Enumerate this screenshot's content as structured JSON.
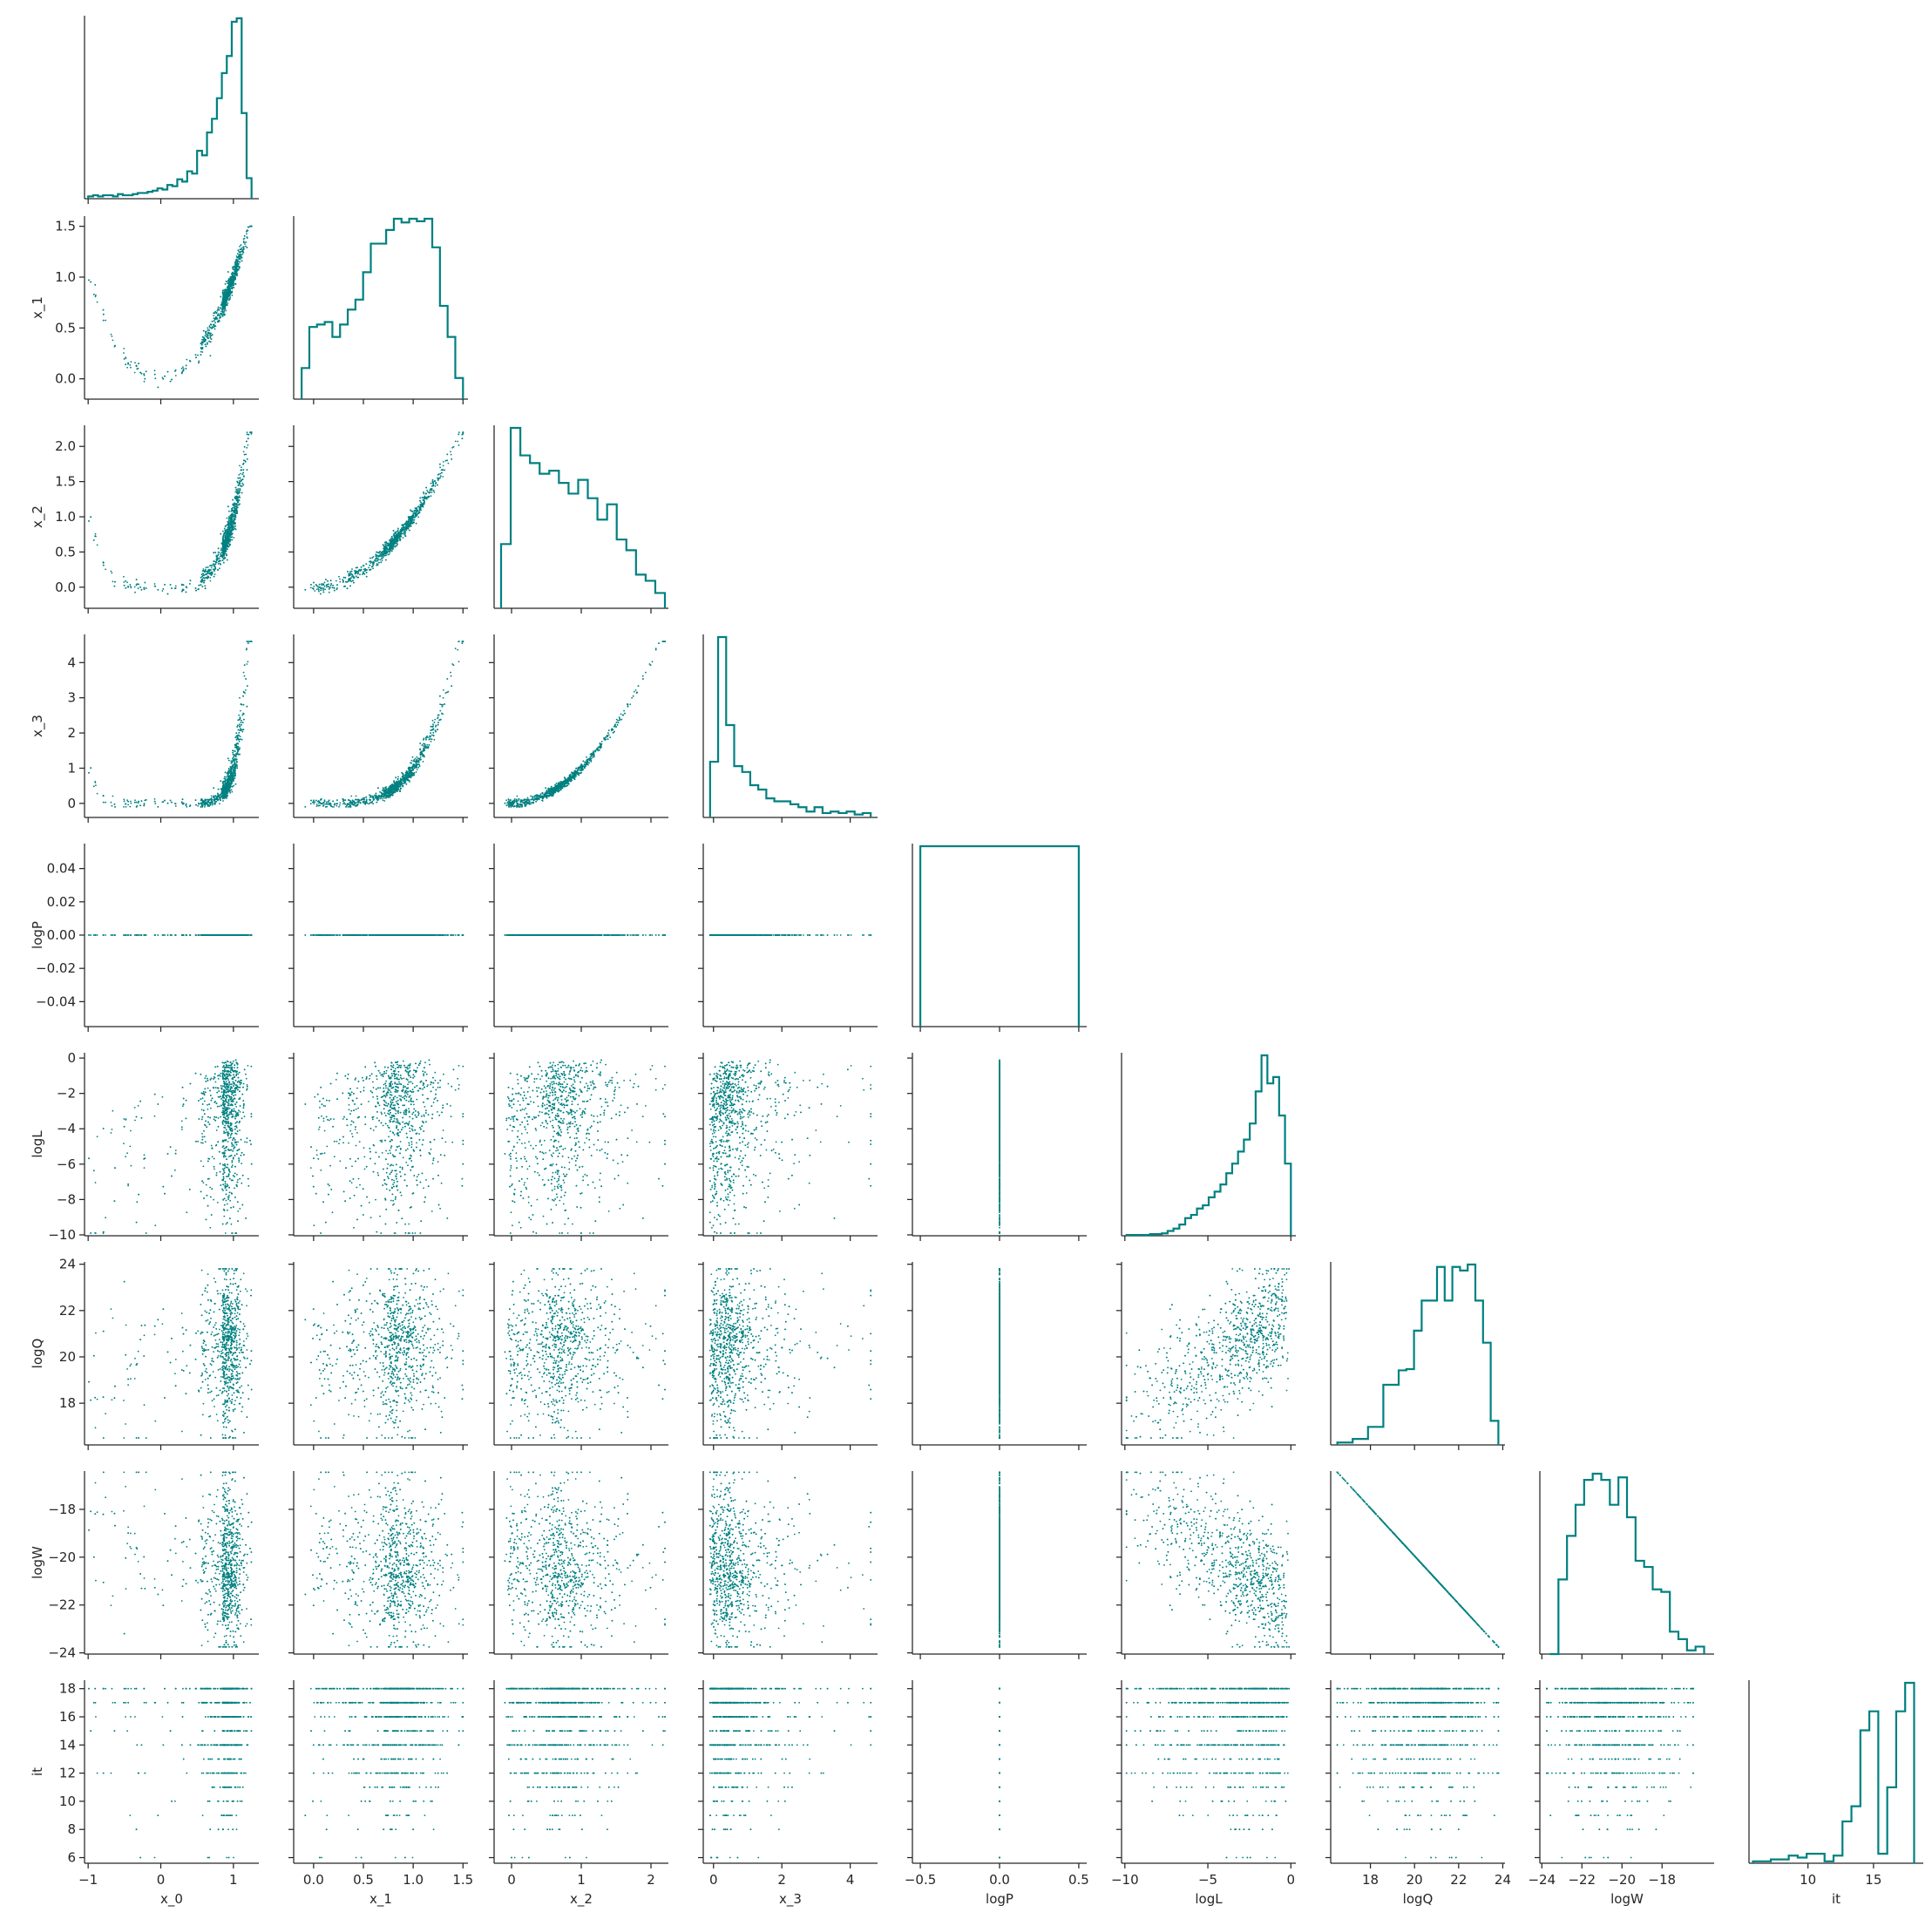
{
  "chart_data": {
    "type": "scatter",
    "kind": "corner pair plot (lower triangle scatter, diagonal step histograms)",
    "color": "#008080",
    "background": "#ffffff",
    "grid": false,
    "variables": [
      "x_0",
      "x_1",
      "x_2",
      "x_3",
      "logP",
      "logL",
      "logQ",
      "logW",
      "it"
    ],
    "x_ranges": {
      "x_0": [
        -1.05,
        1.35
      ],
      "x_1": [
        -0.2,
        1.55
      ],
      "x_2": [
        -0.25,
        2.25
      ],
      "x_3": [
        -0.3,
        4.8
      ],
      "logP": [
        -0.55,
        0.55
      ],
      "logL": [
        -10.2,
        0.3
      ],
      "logQ": [
        16.2,
        24.1
      ],
      "logW": [
        -24.1,
        -15.4
      ],
      "it": [
        5.5,
        18.8
      ]
    },
    "y_ranges": {
      "x_1": [
        -0.2,
        1.6
      ],
      "x_2": [
        -0.3,
        2.3
      ],
      "x_3": [
        -0.4,
        4.8
      ],
      "logP": [
        -0.055,
        0.055
      ],
      "logL": [
        -10.05,
        0.3
      ],
      "logQ": [
        16.2,
        24.1
      ],
      "logW": [
        -24.05,
        -16.4
      ],
      "it": [
        5.6,
        18.6
      ]
    },
    "x_ticks": {
      "x_0": [
        "-1",
        "0",
        "1"
      ],
      "x_1": [
        "0.0",
        "0.5",
        "1.0",
        "1.5"
      ],
      "x_2": [
        "0",
        "1",
        "2"
      ],
      "x_3": [
        "0",
        "2",
        "4"
      ],
      "logP": [
        "-0.5",
        "0.0",
        "0.5"
      ],
      "logL": [
        "-10",
        "-5",
        "0"
      ],
      "logQ": [
        "18",
        "20",
        "22",
        "24"
      ],
      "logW": [
        "-24",
        "-22",
        "-20",
        "-18"
      ],
      "it": [
        "10",
        "15"
      ]
    },
    "y_ticks": {
      "x_1": [
        "0.0",
        "0.5",
        "1.0",
        "1.5"
      ],
      "x_2": [
        "0.0",
        "0.5",
        "1.0",
        "1.5",
        "2.0"
      ],
      "x_3": [
        "0",
        "1",
        "2",
        "3",
        "4"
      ],
      "logP": [
        "-0.04",
        "-0.02",
        "0.00",
        "0.02",
        "0.04"
      ],
      "logL": [
        "-10",
        "-8",
        "-6",
        "-4",
        "-2",
        "0"
      ],
      "logQ": [
        "18",
        "20",
        "22",
        "24"
      ],
      "logW": [
        "-24",
        "-22",
        "-20",
        "-18"
      ],
      "it": [
        "6",
        "8",
        "10",
        "12",
        "14",
        "16",
        "18"
      ]
    },
    "histograms": {
      "x_0": {
        "bins": [
          -1.0,
          1.25
        ],
        "counts": [
          2,
          3,
          2,
          3,
          3,
          2,
          4,
          3,
          3,
          4,
          5,
          5,
          6,
          7,
          9,
          8,
          12,
          11,
          17,
          15,
          24,
          22,
          42,
          38,
          58,
          70,
          88,
          110,
          125,
          155,
          158,
          75,
          18
        ]
      },
      "x_1": {
        "bins": [
          -0.12,
          1.5
        ],
        "counts": [
          25,
          58,
          60,
          62,
          50,
          60,
          72,
          80,
          102,
          125,
          125,
          136,
          145,
          142,
          145,
          143,
          145,
          122,
          75,
          50,
          17
        ]
      },
      "x_2": {
        "bins": [
          -0.15,
          2.2
        ],
        "counts": [
          42,
          118,
          100,
          95,
          88,
          90,
          82,
          75,
          84,
          72,
          58,
          68,
          45,
          38,
          22,
          18,
          10
        ]
      },
      "x_3": {
        "bins": [
          -0.1,
          4.6
        ],
        "counts": [
          38,
          123,
          63,
          35,
          31,
          22,
          19,
          13,
          11,
          11,
          9,
          7,
          4,
          7,
          3,
          4,
          3,
          4,
          2,
          3
        ]
      },
      "logP": {
        "bins": [
          -0.5,
          0.5
        ],
        "counts": [
          1
        ]
      },
      "logL": {
        "bins": [
          -9.9,
          0
        ],
        "counts": [
          1,
          1,
          1,
          1,
          2,
          2,
          3,
          6,
          9,
          14,
          22,
          26,
          34,
          38,
          48,
          55,
          64,
          78,
          90,
          105,
          120,
          140,
          180,
          225,
          190,
          198,
          150,
          90
        ]
      },
      "logQ": {
        "bins": [
          16.5,
          23.8
        ],
        "counts": [
          2,
          2,
          5,
          5,
          15,
          15,
          50,
          50,
          62,
          63,
          95,
          120,
          120,
          148,
          120,
          148,
          145,
          150,
          120,
          85,
          20
        ]
      },
      "logW": {
        "bins": [
          -23.6,
          -15.9
        ],
        "counts": [
          0,
          60,
          95,
          120,
          140,
          145,
          140,
          120,
          142,
          110,
          75,
          70,
          52,
          50,
          18,
          12,
          3,
          6
        ]
      },
      "it": {
        "bins": [
          5.8,
          18.1
        ],
        "counts": [
          1,
          1,
          2,
          2,
          4,
          3,
          5,
          5,
          1,
          4,
          22,
          30,
          70,
          80,
          5,
          40,
          80,
          95
        ]
      }
    }
  }
}
